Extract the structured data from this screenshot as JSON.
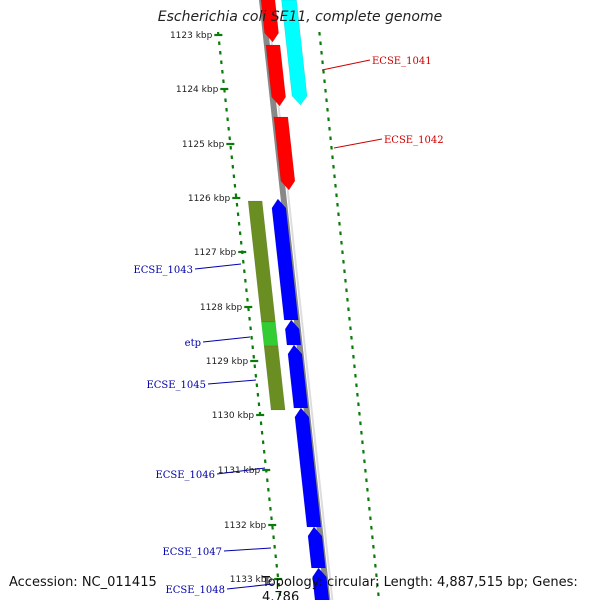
{
  "header": {
    "title": "Escherichia coli SE11, complete genome"
  },
  "footer": {
    "accession": "Accession: NC_011415",
    "summary": "Topology: circular; Length: 4,887,515 bp; Genes: 4,786"
  },
  "colors": {
    "backbone": "#888888",
    "tick": "#0a7a0a",
    "forward_cds": "#ff0000",
    "forward_other": "#00ffff",
    "reverse_cds": "#0000ff",
    "operon": "#6b8e23",
    "operon_highlight": "#33cc33",
    "label_forward": "#cc0000",
    "label_reverse": "#0000aa"
  },
  "ruler": {
    "unit_labels": [
      "1123 kbp",
      "1124 kbp",
      "1125 kbp",
      "1126 kbp",
      "1127 kbp",
      "1128 kbp",
      "1129 kbp",
      "1130 kbp",
      "1131 kbp",
      "1132 kbp",
      "1133 kbp"
    ]
  },
  "genes": {
    "forward": [
      "ECSE_1041",
      "ECSE_1042"
    ],
    "reverse": [
      "ECSE_1043",
      "etp",
      "ECSE_1045",
      "ECSE_1046",
      "ECSE_1047",
      "ECSE_1048"
    ]
  }
}
